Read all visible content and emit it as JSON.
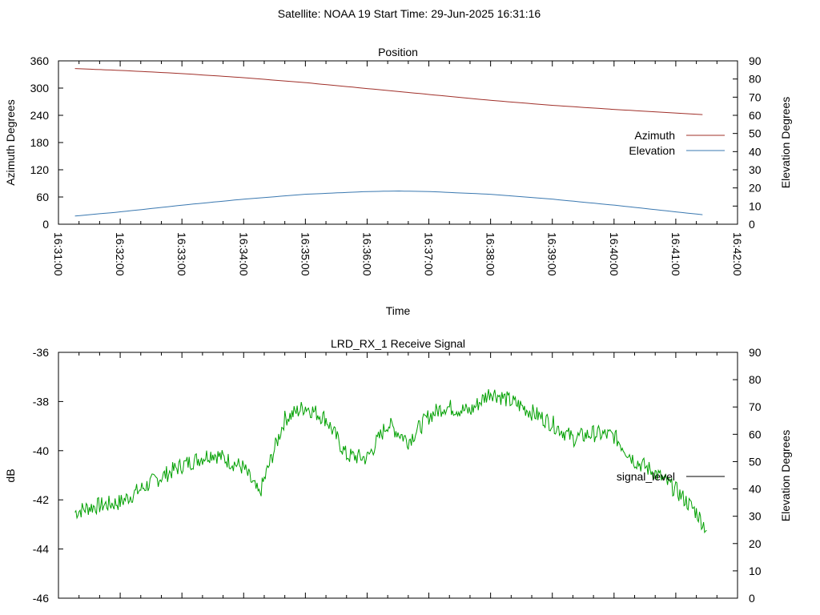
{
  "suptitle": "Satellite: NOAA 19    Start Time: 29-Jun-2025 16:31:16",
  "charts": [
    {
      "title": "Position",
      "xlabel": "Time",
      "ylabel_left": "Azimuth Degrees",
      "ylabel_right": "Elevation Degrees",
      "left_ticks": [
        "0",
        "60",
        "120",
        "180",
        "240",
        "300",
        "360"
      ],
      "right_ticks": [
        "0",
        "10",
        "20",
        "30",
        "40",
        "50",
        "60",
        "70",
        "80",
        "90"
      ],
      "x_ticks": [
        "16:31:00",
        "16:32:00",
        "16:33:00",
        "16:34:00",
        "16:35:00",
        "16:36:00",
        "16:37:00",
        "16:38:00",
        "16:39:00",
        "16:40:00",
        "16:41:00",
        "16:42:00"
      ]
    },
    {
      "title": "LRD_RX_1 Receive Signal",
      "ylabel_left": "dB",
      "ylabel_right": "Elevation Degrees",
      "left_ticks": [
        "-46",
        "-44",
        "-42",
        "-40",
        "-38",
        "-36"
      ],
      "right_ticks": [
        "0",
        "10",
        "20",
        "30",
        "40",
        "50",
        "60",
        "70",
        "80",
        "90"
      ]
    }
  ],
  "chart_data": [
    {
      "type": "line",
      "title": "Position",
      "xlabel": "Time",
      "ylabel": "Azimuth Degrees",
      "y2label": "Elevation Degrees",
      "x_range": [
        "16:31:00",
        "16:42:00"
      ],
      "ylim": [
        0,
        360
      ],
      "y2lim": [
        0,
        90
      ],
      "grid": false,
      "legend_position": "right",
      "series": [
        {
          "name": "Azimuth",
          "axis": "left",
          "color": "#a0302a",
          "x": [
            "16:31:16",
            "16:32:00",
            "16:33:00",
            "16:34:00",
            "16:35:00",
            "16:36:00",
            "16:37:00",
            "16:38:00",
            "16:39:00",
            "16:40:00",
            "16:41:00",
            "16:41:30"
          ],
          "y": [
            343,
            339,
            332,
            323,
            312,
            299,
            286,
            273,
            262,
            253,
            245,
            241
          ]
        },
        {
          "name": "Elevation",
          "axis": "right",
          "color": "#3a78b0",
          "x": [
            "16:31:16",
            "16:32:00",
            "16:33:00",
            "16:34:00",
            "16:35:00",
            "16:36:00",
            "16:36:30",
            "16:37:00",
            "16:38:00",
            "16:39:00",
            "16:40:00",
            "16:41:00",
            "16:41:30"
          ],
          "y": [
            4.5,
            6.8,
            10.5,
            13.8,
            16.5,
            18,
            18.3,
            18,
            16.5,
            13.8,
            10.5,
            6.8,
            5
          ]
        }
      ]
    },
    {
      "type": "line",
      "title": "LRD_RX_1 Receive Signal",
      "ylabel": "dB",
      "y2label": "Elevation Degrees",
      "ylim": [
        -46,
        -36
      ],
      "y2lim": [
        0,
        90
      ],
      "grid": false,
      "legend_position": "right",
      "series": [
        {
          "name": "signal_level",
          "color": "#00a000",
          "legend_color": "#000000",
          "x": [
            "16:31:16",
            "16:31:30",
            "16:32:00",
            "16:32:30",
            "16:33:00",
            "16:33:30",
            "16:34:00",
            "16:34:15",
            "16:34:40",
            "16:35:00",
            "16:35:20",
            "16:35:40",
            "16:36:00",
            "16:36:20",
            "16:36:40",
            "16:37:00",
            "16:37:15",
            "16:37:40",
            "16:38:00",
            "16:38:30",
            "16:39:00",
            "16:39:20",
            "16:39:40",
            "16:40:00",
            "16:40:20",
            "16:40:40",
            "16:41:00",
            "16:41:20",
            "16:41:30"
          ],
          "y": [
            -42.5,
            -42.3,
            -42.1,
            -41.3,
            -40.6,
            -40.1,
            -40.7,
            -41.8,
            -38.7,
            -38.2,
            -38.7,
            -40.2,
            -40.3,
            -38.9,
            -39.6,
            -38.6,
            -38.2,
            -38.4,
            -37.6,
            -38.2,
            -38.9,
            -39.5,
            -39.3,
            -39.4,
            -40.4,
            -40.9,
            -41.6,
            -42.5,
            -43.2
          ]
        }
      ]
    }
  ]
}
